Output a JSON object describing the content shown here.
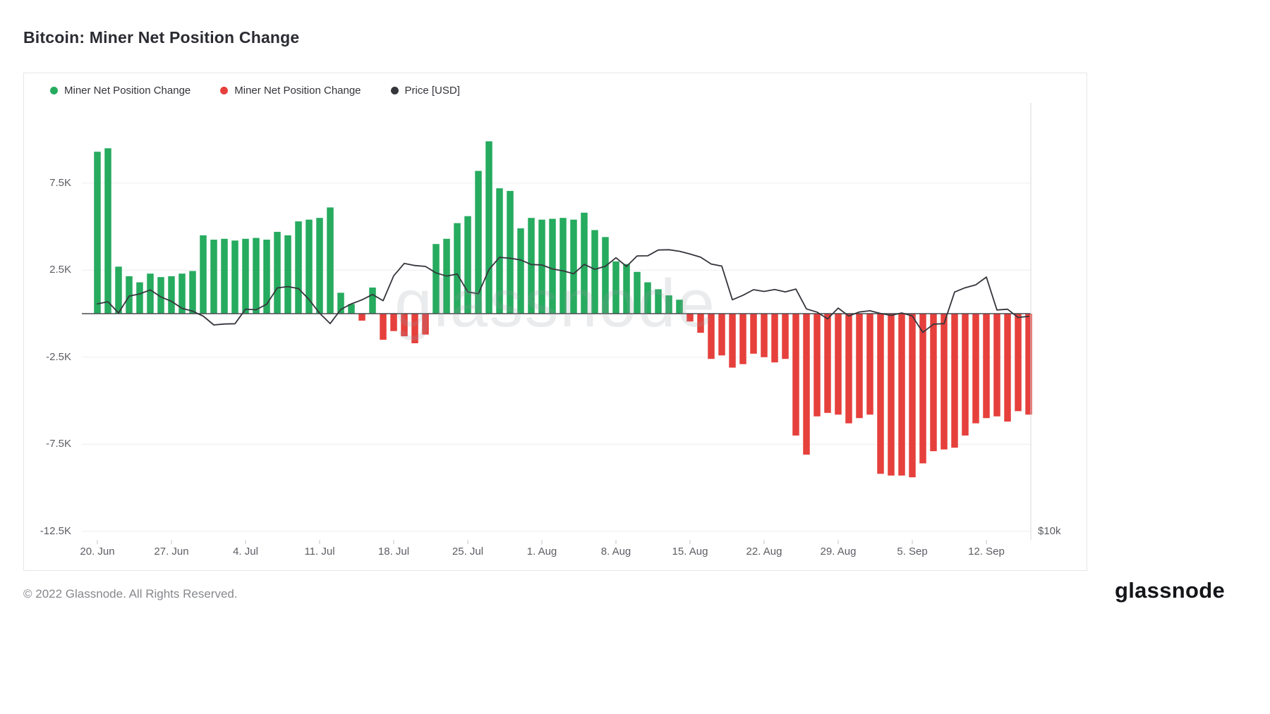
{
  "title": "Bitcoin: Miner Net Position Change",
  "legend": [
    {
      "label": "Miner Net Position Change",
      "color": "#26ab5f"
    },
    {
      "label": "Miner Net Position Change",
      "color": "#e6403c"
    },
    {
      "label": "Price [USD]",
      "color": "#35363c"
    }
  ],
  "watermark": "glassnode",
  "footer": {
    "copyright": "© 2022 Glassnode. All Rights Reserved.",
    "logo": "glassnode"
  },
  "chart_data": {
    "type": "bar",
    "title": "Bitcoin: Miner Net Position Change",
    "x_axis": {
      "start_date": "2022-06-20",
      "interval": "1 day",
      "tick_labels": [
        "20. Jun",
        "27. Jun",
        "4. Jul",
        "11. Jul",
        "18. Jul",
        "25. Jul",
        "1. Aug",
        "8. Aug",
        "15. Aug",
        "22. Aug",
        "29. Aug",
        "5. Sep",
        "12. Sep"
      ],
      "tick_indices": [
        0,
        7,
        14,
        21,
        28,
        35,
        42,
        49,
        56,
        63,
        70,
        77,
        84
      ]
    },
    "y_left": {
      "tick_labels": [
        "7.5K",
        "2.5K",
        "-2.5K",
        "-7.5K",
        "-12.5K"
      ],
      "tick_values": [
        7500,
        2500,
        -2500,
        -7500,
        -12500
      ],
      "range": [
        -13500,
        12000
      ],
      "grid": true
    },
    "y_right": {
      "tick_labels": [
        "$10k"
      ],
      "tick_values": [
        10000
      ],
      "scale": "log"
    },
    "series": [
      {
        "name": "Miner Net Position Change",
        "type": "bar",
        "unit": "BTC",
        "color_positive": "#26ab5f",
        "color_negative": "#e6403c",
        "values": [
          9300,
          9500,
          2700,
          2150,
          1800,
          2300,
          2100,
          2150,
          2300,
          2450,
          4500,
          4250,
          4300,
          4200,
          4300,
          4350,
          4250,
          4700,
          4500,
          5300,
          5400,
          5500,
          6100,
          1200,
          550,
          -400,
          1500,
          -1500,
          -1000,
          -1300,
          -1700,
          -1200,
          4000,
          4300,
          5200,
          5600,
          8200,
          9900,
          7200,
          7050,
          4900,
          5500,
          5400,
          5450,
          5500,
          5400,
          5800,
          4800,
          4400,
          3000,
          2850,
          2400,
          1800,
          1400,
          1050,
          800,
          -450,
          -1100,
          -2600,
          -2400,
          -3100,
          -2900,
          -2300,
          -2500,
          -2800,
          -2600,
          -7000,
          -8100,
          -5900,
          -5700,
          -5800,
          -6300,
          -6000,
          -5800,
          -9200,
          -9300,
          -9300,
          -9400,
          -8600,
          -7900,
          -7800,
          -7700,
          -7000,
          -6300,
          -6000,
          -5900,
          -6200,
          -5600,
          -5800
        ]
      },
      {
        "name": "Price [USD]",
        "type": "line",
        "unit": "USD",
        "color": "#35363c",
        "values": [
          20573,
          20710,
          19987,
          21085,
          21231,
          21502,
          21027,
          20735,
          20280,
          20104,
          19784,
          19242,
          19297,
          19315,
          20231,
          20190,
          20548,
          21637,
          21731,
          21592,
          20860,
          19970,
          19323,
          20212,
          20569,
          20836,
          21190,
          20781,
          22485,
          23389,
          23231,
          23164,
          22690,
          22465,
          22609,
          21361,
          21239,
          22930,
          23843,
          23773,
          23644,
          23303,
          23271,
          22978,
          22846,
          22630,
          23312,
          22954,
          23175,
          23809,
          23164,
          23948,
          23957,
          24402,
          24424,
          24305,
          24095,
          23854,
          23342,
          23191,
          20838,
          21140,
          21516,
          21398,
          21528,
          21368,
          21559,
          20241,
          20038,
          19616,
          20298,
          19793,
          20050,
          20127,
          19953,
          19832,
          19988,
          19794,
          18790,
          19290,
          19320,
          21360,
          21650,
          21850,
          22395,
          20173,
          20226,
          19701,
          19772
        ]
      }
    ],
    "legend_position": "top-left"
  }
}
